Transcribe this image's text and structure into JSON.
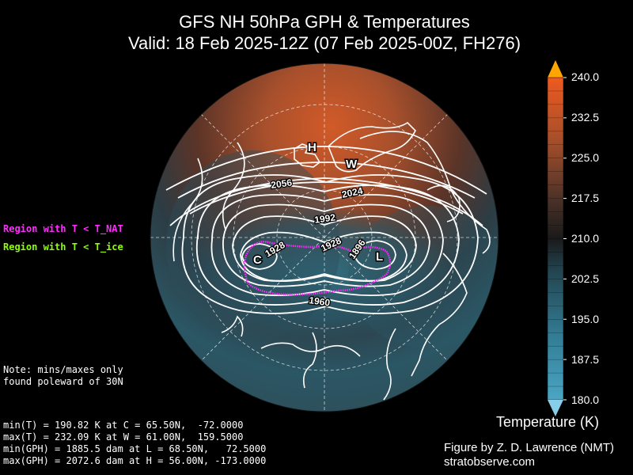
{
  "title": {
    "line1": "GFS NH 50hPa GPH & Temperatures",
    "line2": "Valid: 18 Feb 2025-12Z  (07 Feb 2025-00Z, FH276)"
  },
  "legend": {
    "nat": "Region with T < T_NAT",
    "ice": "Region with T < T_ice",
    "nat_color": "#ff2bff",
    "ice_color": "#8cff00"
  },
  "note": {
    "line1": "Note: mins/maxes only",
    "line2": "found poleward of 30N"
  },
  "stats": [
    "min(T) = 190.82 K at C = 65.50N,  -72.0000",
    "max(T) = 232.09 K at W = 61.00N,  159.5000",
    "min(GPH) = 1885.5 dam at L = 68.50N,   72.5000",
    "max(GPH) = 2072.6 dam at H = 56.00N, -173.0000"
  ],
  "colorbar": {
    "title": "Temperature (K)",
    "ticks": [
      "240.0",
      "232.5",
      "225.0",
      "217.5",
      "210.0",
      "202.5",
      "195.0",
      "187.5",
      "180.0"
    ],
    "min": 180.0,
    "max": 240.0,
    "low_color": "#4aa0c0",
    "mid_color": "#151515",
    "high_color": "#e0501a",
    "over_color": "#ffa500",
    "under_color": "#87ceeb"
  },
  "credit": {
    "line1": "Figure by Z. D. Lawrence (NMT)",
    "line2": "stratobserve.com"
  },
  "markers": {
    "H": "H",
    "W": "W",
    "C": "C",
    "L": "L"
  },
  "contour_labels": [
    "2056",
    "2024",
    "1992",
    "1928",
    "1928",
    "1896",
    "1960"
  ]
}
